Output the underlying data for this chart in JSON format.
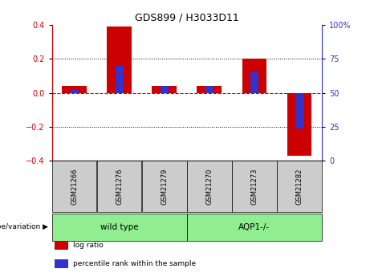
{
  "title": "GDS899 / H3033D11",
  "samples": [
    "GSM21266",
    "GSM21276",
    "GSM21279",
    "GSM21270",
    "GSM21273",
    "GSM21282"
  ],
  "log_ratio": [
    0.04,
    0.39,
    0.04,
    0.04,
    0.2,
    -0.37
  ],
  "percentile_rank": [
    52,
    70,
    55,
    55,
    65,
    24
  ],
  "group_labels": [
    "wild type",
    "AQP1-/-"
  ],
  "group_color": "#90ee90",
  "ylim_left": [
    -0.4,
    0.4
  ],
  "ylim_right": [
    0,
    100
  ],
  "yticks_left": [
    -0.4,
    -0.2,
    0.0,
    0.2,
    0.4
  ],
  "yticks_right": [
    0,
    25,
    50,
    75,
    100
  ],
  "bar_color_red": "#cc0000",
  "bar_color_blue": "#3333cc",
  "dotted_line_color": "#000000",
  "zero_line_color": "#cc0000",
  "bg_color": "#ffffff",
  "sample_box_color": "#cccccc",
  "red_bar_width": 0.55,
  "blue_bar_width": 0.18,
  "genotype_label": "genotype/variation ▶",
  "legend_items": [
    {
      "label": "log ratio",
      "color": "#cc0000"
    },
    {
      "label": "percentile rank within the sample",
      "color": "#3333cc"
    }
  ]
}
